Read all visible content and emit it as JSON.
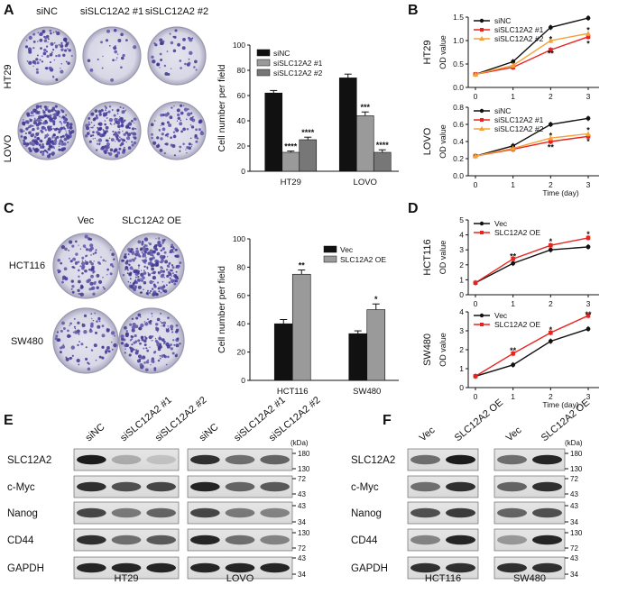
{
  "panel_labels": {
    "A": "A",
    "B": "B",
    "C": "C",
    "D": "D",
    "E": "E",
    "F": "F"
  },
  "panelA": {
    "col_labels": [
      "siNC",
      "siSLC12A2 #1",
      "siSLC12A2 #2"
    ],
    "row_labels": [
      "HT29",
      "LOVO"
    ]
  },
  "panelC": {
    "col_labels": [
      "Vec",
      "SLC12A2 OE"
    ],
    "row_labels": [
      "HCT116",
      "SW480"
    ]
  },
  "panelE": {
    "lane_labels": [
      "siNC",
      "siSLC12A2 #1",
      "siSLC12A2 #2",
      "siNC",
      "siSLC12A2 #1",
      "siSLC12A2 #2"
    ],
    "proteins": [
      "SLC12A2",
      "c-Myc",
      "Nanog",
      "CD44",
      "GAPDH"
    ],
    "kda_unit": "(kDa)",
    "markers": [
      "180",
      "130",
      "72",
      "43",
      "43",
      "34",
      "130",
      "72",
      "43",
      "34"
    ],
    "groups": [
      "HT29",
      "LOVO"
    ]
  },
  "panelF": {
    "lane_labels": [
      "Vec",
      "SLC12A2 OE",
      "Vec",
      "SLC12A2 OE"
    ],
    "proteins": [
      "SLC12A2",
      "c-Myc",
      "Nanog",
      "CD44",
      "GAPDH"
    ],
    "kda_unit": "(kDa)",
    "markers": [
      "180",
      "130",
      "72",
      "43",
      "43",
      "34",
      "130",
      "72",
      "43",
      "34"
    ],
    "groups": [
      "HCT116",
      "SW480"
    ]
  },
  "chart_data": [
    {
      "id": "A-bar",
      "type": "bar",
      "ylabel": "Cell number per field",
      "ylim": [
        0,
        100
      ],
      "yticks": [
        "0",
        "20",
        "40",
        "60",
        "80",
        "100"
      ],
      "categories": [
        "HT29",
        "LOVO"
      ],
      "legend_position": "top-left",
      "series": [
        {
          "name": "siNC",
          "values": [
            62,
            74
          ],
          "errors": [
            2,
            3
          ],
          "color": "#111111",
          "sig": [
            "",
            ""
          ]
        },
        {
          "name": "siSLC12A2 #1",
          "values": [
            15,
            44
          ],
          "errors": [
            1,
            3
          ],
          "color": "#9a9a9a",
          "sig": [
            "****",
            "***"
          ]
        },
        {
          "name": "siSLC12A2 #2",
          "values": [
            25,
            15
          ],
          "errors": [
            2,
            2
          ],
          "color": "#777777",
          "sig": [
            "****",
            "****"
          ]
        }
      ]
    },
    {
      "id": "B-HT29",
      "type": "line",
      "ylabel": "OD value",
      "side_label": "HT29",
      "x": [
        0,
        1,
        2,
        3
      ],
      "xticks": [
        "0",
        "1",
        "2",
        "3"
      ],
      "ylim": [
        0,
        1.5
      ],
      "yticks": [
        "0.0",
        "0.5",
        "1.0",
        "1.5"
      ],
      "legend_position": "top-left",
      "series": [
        {
          "name": "siNC",
          "values": [
            0.28,
            0.55,
            1.28,
            1.48
          ],
          "color": "#111111",
          "marker": "circle"
        },
        {
          "name": "siSLC12A2 #1",
          "values": [
            0.28,
            0.43,
            0.8,
            1.08
          ],
          "color": "#e8231f",
          "marker": "square"
        },
        {
          "name": "siSLC12A2 #2",
          "values": [
            0.28,
            0.47,
            1.0,
            1.15
          ],
          "color": "#f4a13b",
          "marker": "triangle"
        }
      ],
      "annotations": [
        {
          "x": 2,
          "y": 1.03,
          "text": "*",
          "color": "#f4a13b"
        },
        {
          "x": 2,
          "y": 0.72,
          "text": "**",
          "color": "#111111"
        },
        {
          "x": 3,
          "y": 1.22,
          "text": "*",
          "color": "#111111"
        },
        {
          "x": 3,
          "y": 0.93,
          "text": "*",
          "color": "#e8231f"
        }
      ]
    },
    {
      "id": "B-LOVO",
      "type": "line",
      "ylabel": "OD value",
      "xlabel": "Time (day)",
      "side_label": "LOVO",
      "x": [
        0,
        1,
        2,
        3
      ],
      "xticks": [
        "0",
        "1",
        "2",
        "3"
      ],
      "ylim": [
        0,
        0.8
      ],
      "yticks": [
        "0.0",
        "0.2",
        "0.4",
        "0.6",
        "0.8"
      ],
      "legend_position": "top-left",
      "series": [
        {
          "name": "siNC",
          "values": [
            0.23,
            0.35,
            0.6,
            0.67
          ],
          "color": "#111111",
          "marker": "circle"
        },
        {
          "name": "siSLC12A2 #1",
          "values": [
            0.23,
            0.31,
            0.4,
            0.46
          ],
          "color": "#e8231f",
          "marker": "square"
        },
        {
          "name": "siSLC12A2 #2",
          "values": [
            0.23,
            0.32,
            0.44,
            0.49
          ],
          "color": "#f4a13b",
          "marker": "triangle"
        }
      ],
      "annotations": [
        {
          "x": 2,
          "y": 0.47,
          "text": "*",
          "color": "#111111"
        },
        {
          "x": 2,
          "y": 0.33,
          "text": "**",
          "color": "#111111"
        },
        {
          "x": 3,
          "y": 0.53,
          "text": "*",
          "color": "#111111"
        },
        {
          "x": 3,
          "y": 0.4,
          "text": "*",
          "color": "#e8231f"
        }
      ]
    },
    {
      "id": "C-bar",
      "type": "bar",
      "ylabel": "Cell number per field",
      "ylim": [
        0,
        100
      ],
      "yticks": [
        "0",
        "20",
        "40",
        "60",
        "80",
        "100"
      ],
      "categories": [
        "HCT116",
        "SW480"
      ],
      "legend_position": "top-right",
      "series": [
        {
          "name": "Vec",
          "values": [
            40,
            33
          ],
          "errors": [
            3,
            2
          ],
          "color": "#111111",
          "sig": [
            "",
            ""
          ]
        },
        {
          "name": "SLC12A2 OE",
          "values": [
            75,
            50
          ],
          "errors": [
            3,
            4
          ],
          "color": "#9a9a9a",
          "sig": [
            "**",
            "*"
          ]
        }
      ]
    },
    {
      "id": "D-HCT116",
      "type": "line",
      "ylabel": "OD value",
      "side_label": "HCT116",
      "x": [
        0,
        1,
        2,
        3
      ],
      "xticks": [
        "0",
        "1",
        "2",
        "3"
      ],
      "ylim": [
        0,
        5
      ],
      "yticks": [
        "0",
        "1",
        "2",
        "3",
        "4",
        "5"
      ],
      "legend_position": "top-left",
      "series": [
        {
          "name": "Vec",
          "values": [
            0.8,
            2.1,
            3.0,
            3.2
          ],
          "color": "#111111",
          "marker": "circle"
        },
        {
          "name": "SLC12A2 OE",
          "values": [
            0.8,
            2.4,
            3.3,
            3.8
          ],
          "color": "#e8231f",
          "marker": "square"
        }
      ],
      "annotations": [
        {
          "x": 1,
          "y": 2.55,
          "text": "**",
          "color": "#111111"
        },
        {
          "x": 2,
          "y": 3.55,
          "text": "*",
          "color": "#111111"
        },
        {
          "x": 3,
          "y": 4.05,
          "text": "*",
          "color": "#111111"
        }
      ]
    },
    {
      "id": "D-SW480",
      "type": "line",
      "ylabel": "OD value",
      "xlabel": "Time (day)",
      "side_label": "SW480",
      "x": [
        0,
        1,
        2,
        3
      ],
      "xticks": [
        "0",
        "1",
        "2",
        "3"
      ],
      "ylim": [
        0,
        4
      ],
      "yticks": [
        "0",
        "1",
        "2",
        "3",
        "4"
      ],
      "legend_position": "top-left",
      "series": [
        {
          "name": "Vec",
          "values": [
            0.6,
            1.2,
            2.45,
            3.1
          ],
          "color": "#111111",
          "marker": "circle"
        },
        {
          "name": "SLC12A2 OE",
          "values": [
            0.6,
            1.8,
            2.9,
            3.8
          ],
          "color": "#e8231f",
          "marker": "square"
        }
      ],
      "annotations": [
        {
          "x": 1,
          "y": 1.95,
          "text": "**",
          "color": "#111111"
        },
        {
          "x": 2,
          "y": 3.05,
          "text": "*",
          "color": "#111111"
        },
        {
          "x": 3,
          "y": 3.85,
          "text": "**",
          "color": "#111111"
        }
      ]
    }
  ]
}
